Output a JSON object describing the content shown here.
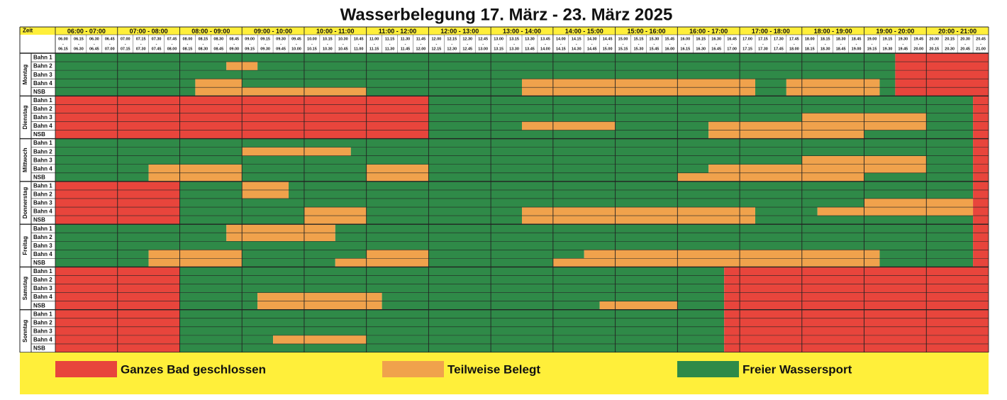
{
  "title": "Wasserbelegung 17. März - 23. März 2025",
  "time_header": "Zeit",
  "slot_separator": "-",
  "hours": [
    "06:00 - 07:00",
    "07:00 - 08:00",
    "08:00 - 09:00",
    "09:00 - 10:00",
    "10:00 - 11:00",
    "11:00 - 12:00",
    "12:00 - 13:00",
    "13:00 - 14:00",
    "14:00 - 15:00",
    "15:00 - 16:00",
    "16:00 - 17:00",
    "17:00 - 18:00",
    "18:00 - 19:00",
    "19:00 - 20:00",
    "20:00 - 21:00"
  ],
  "slots": [
    [
      "06.00",
      "06.15"
    ],
    [
      "06.15",
      "06.30"
    ],
    [
      "06.30",
      "06.45"
    ],
    [
      "06.45",
      "07.00"
    ],
    [
      "07.00",
      "07.15"
    ],
    [
      "07.15",
      "07.30"
    ],
    [
      "07.30",
      "07.45"
    ],
    [
      "07.45",
      "08.00"
    ],
    [
      "08.00",
      "08.15"
    ],
    [
      "08.15",
      "08.30"
    ],
    [
      "08.30",
      "08.45"
    ],
    [
      "08.45",
      "09.00"
    ],
    [
      "09.00",
      "09.15"
    ],
    [
      "09.15",
      "09.30"
    ],
    [
      "09.30",
      "09.45"
    ],
    [
      "09.45",
      "10.00"
    ],
    [
      "10.00",
      "10.15"
    ],
    [
      "10.15",
      "10.30"
    ],
    [
      "10.30",
      "10.45"
    ],
    [
      "10.45",
      "11.00"
    ],
    [
      "11.00",
      "11.15"
    ],
    [
      "11.15",
      "11.30"
    ],
    [
      "11.30",
      "11.45"
    ],
    [
      "11.45",
      "12.00"
    ],
    [
      "12.00",
      "12.15"
    ],
    [
      "12.15",
      "12.30"
    ],
    [
      "12.30",
      "12.45"
    ],
    [
      "12.45",
      "13.00"
    ],
    [
      "13.00",
      "13.15"
    ],
    [
      "13.15",
      "13.30"
    ],
    [
      "13.30",
      "13.45"
    ],
    [
      "13.45",
      "14.00"
    ],
    [
      "14.00",
      "14.15"
    ],
    [
      "14.15",
      "14.30"
    ],
    [
      "14.30",
      "14.45"
    ],
    [
      "14.45",
      "15.00"
    ],
    [
      "15.00",
      "15.15"
    ],
    [
      "15.15",
      "15.30"
    ],
    [
      "15.30",
      "15.45"
    ],
    [
      "15.45",
      "16.00"
    ],
    [
      "16.00",
      "16.15"
    ],
    [
      "16.15",
      "16.30"
    ],
    [
      "16.30",
      "16.45"
    ],
    [
      "16.45",
      "17.00"
    ],
    [
      "17.00",
      "17.15"
    ],
    [
      "17.15",
      "17.30"
    ],
    [
      "17.30",
      "17.45"
    ],
    [
      "17.45",
      "18.00"
    ],
    [
      "18.00",
      "18.15"
    ],
    [
      "18.15",
      "18.30"
    ],
    [
      "18.30",
      "18.45"
    ],
    [
      "18.45",
      "19.00"
    ],
    [
      "19.00",
      "19.15"
    ],
    [
      "19.15",
      "19.30"
    ],
    [
      "19.30",
      "19.45"
    ],
    [
      "19.45",
      "20.00"
    ],
    [
      "20.00",
      "20.15"
    ],
    [
      "20.15",
      "20.30"
    ],
    [
      "20.30",
      "20.45"
    ],
    [
      "20.45",
      "21.00"
    ]
  ],
  "lanes": [
    "Bahn 1",
    "Bahn 2",
    "Bahn 3",
    "Bahn 4",
    "NSB"
  ],
  "legend": [
    {
      "code": "r",
      "label": "Ganzes Bad geschlossen",
      "color": "#e8453c"
    },
    {
      "code": "o",
      "label": "Teilweise Belegt",
      "color": "#f0a24c"
    },
    {
      "code": "g",
      "label": "Freier Wassersport",
      "color": "#2f8a48"
    }
  ],
  "days": [
    {
      "name": "Montag",
      "rows": [
        [
          [
            "g",
            54
          ],
          [
            "r",
            6
          ]
        ],
        [
          [
            "g",
            11
          ],
          [
            "o",
            2
          ],
          [
            "g",
            41
          ],
          [
            "r",
            6
          ]
        ],
        [
          [
            "g",
            54
          ],
          [
            "r",
            6
          ]
        ],
        [
          [
            "g",
            9
          ],
          [
            "o",
            3
          ],
          [
            "g",
            18
          ],
          [
            "o",
            15
          ],
          [
            "g",
            2
          ],
          [
            "o",
            6
          ],
          [
            "g",
            1
          ],
          [
            "r",
            6
          ]
        ],
        [
          [
            "g",
            9
          ],
          [
            "o",
            11
          ],
          [
            "g",
            10
          ],
          [
            "o",
            15
          ],
          [
            "g",
            2
          ],
          [
            "o",
            6
          ],
          [
            "g",
            1
          ],
          [
            "r",
            6
          ]
        ]
      ]
    },
    {
      "name": "Dienstag",
      "rows": [
        [
          [
            "r",
            24
          ],
          [
            "g",
            35
          ],
          [
            "r",
            1
          ]
        ],
        [
          [
            "r",
            24
          ],
          [
            "g",
            35
          ],
          [
            "r",
            1
          ]
        ],
        [
          [
            "r",
            24
          ],
          [
            "g",
            24
          ],
          [
            "o",
            8
          ],
          [
            "g",
            3
          ],
          [
            "r",
            1
          ]
        ],
        [
          [
            "r",
            24
          ],
          [
            "g",
            6
          ],
          [
            "o",
            6
          ],
          [
            "g",
            6
          ],
          [
            "o",
            14
          ],
          [
            "g",
            3
          ],
          [
            "r",
            1
          ]
        ],
        [
          [
            "r",
            24
          ],
          [
            "g",
            18
          ],
          [
            "o",
            10
          ],
          [
            "g",
            7
          ],
          [
            "r",
            1
          ]
        ]
      ]
    },
    {
      "name": "Mittwoch",
      "rows": [
        [
          [
            "g",
            59
          ],
          [
            "r",
            1
          ]
        ],
        [
          [
            "g",
            12
          ],
          [
            "o",
            7
          ],
          [
            "g",
            40
          ],
          [
            "r",
            1
          ]
        ],
        [
          [
            "g",
            48
          ],
          [
            "o",
            8
          ],
          [
            "g",
            3
          ],
          [
            "r",
            1
          ]
        ],
        [
          [
            "g",
            6
          ],
          [
            "o",
            6
          ],
          [
            "g",
            8
          ],
          [
            "o",
            4
          ],
          [
            "g",
            18
          ],
          [
            "o",
            14
          ],
          [
            "g",
            3
          ],
          [
            "r",
            1
          ]
        ],
        [
          [
            "g",
            6
          ],
          [
            "o",
            6
          ],
          [
            "g",
            8
          ],
          [
            "o",
            4
          ],
          [
            "g",
            16
          ],
          [
            "o",
            12
          ],
          [
            "g",
            7
          ],
          [
            "r",
            1
          ]
        ]
      ]
    },
    {
      "name": "Donnerstag",
      "rows": [
        [
          [
            "r",
            8
          ],
          [
            "g",
            4
          ],
          [
            "o",
            3
          ],
          [
            "g",
            44
          ],
          [
            "r",
            1
          ]
        ],
        [
          [
            "r",
            8
          ],
          [
            "g",
            4
          ],
          [
            "o",
            3
          ],
          [
            "g",
            44
          ],
          [
            "r",
            1
          ]
        ],
        [
          [
            "r",
            8
          ],
          [
            "g",
            44
          ],
          [
            "o",
            7
          ],
          [
            "r",
            1
          ]
        ],
        [
          [
            "r",
            8
          ],
          [
            "g",
            8
          ],
          [
            "o",
            4
          ],
          [
            "g",
            10
          ],
          [
            "o",
            15
          ],
          [
            "g",
            4
          ],
          [
            "o",
            10
          ],
          [
            "r",
            1
          ]
        ],
        [
          [
            "r",
            8
          ],
          [
            "g",
            8
          ],
          [
            "o",
            4
          ],
          [
            "g",
            10
          ],
          [
            "o",
            15
          ],
          [
            "g",
            14
          ],
          [
            "r",
            1
          ]
        ]
      ]
    },
    {
      "name": "Freitag",
      "rows": [
        [
          [
            "g",
            11
          ],
          [
            "o",
            7
          ],
          [
            "g",
            41
          ],
          [
            "r",
            1
          ]
        ],
        [
          [
            "g",
            11
          ],
          [
            "o",
            7
          ],
          [
            "g",
            41
          ],
          [
            "r",
            1
          ]
        ],
        [
          [
            "g",
            59
          ],
          [
            "r",
            1
          ]
        ],
        [
          [
            "g",
            6
          ],
          [
            "o",
            6
          ],
          [
            "g",
            8
          ],
          [
            "o",
            4
          ],
          [
            "g",
            10
          ],
          [
            "o",
            19
          ],
          [
            "g",
            6
          ],
          [
            "r",
            1
          ]
        ],
        [
          [
            "g",
            6
          ],
          [
            "o",
            6
          ],
          [
            "g",
            6
          ],
          [
            "o",
            6
          ],
          [
            "g",
            8
          ],
          [
            "o",
            21
          ],
          [
            "g",
            6
          ],
          [
            "r",
            1
          ]
        ]
      ]
    },
    {
      "name": "Samstag",
      "rows": [
        [
          [
            "r",
            8
          ],
          [
            "g",
            35
          ],
          [
            "r",
            17
          ]
        ],
        [
          [
            "r",
            8
          ],
          [
            "g",
            35
          ],
          [
            "r",
            17
          ]
        ],
        [
          [
            "r",
            8
          ],
          [
            "g",
            35
          ],
          [
            "r",
            17
          ]
        ],
        [
          [
            "r",
            8
          ],
          [
            "g",
            5
          ],
          [
            "o",
            8
          ],
          [
            "g",
            22
          ],
          [
            "r",
            17
          ]
        ],
        [
          [
            "r",
            8
          ],
          [
            "g",
            5
          ],
          [
            "o",
            8
          ],
          [
            "g",
            14
          ],
          [
            "o",
            5
          ],
          [
            "g",
            3
          ],
          [
            "r",
            17
          ]
        ]
      ]
    },
    {
      "name": "Sonntag",
      "rows": [
        [
          [
            "r",
            8
          ],
          [
            "g",
            35
          ],
          [
            "r",
            17
          ]
        ],
        [
          [
            "r",
            8
          ],
          [
            "g",
            35
          ],
          [
            "r",
            17
          ]
        ],
        [
          [
            "r",
            8
          ],
          [
            "g",
            35
          ],
          [
            "r",
            17
          ]
        ],
        [
          [
            "r",
            8
          ],
          [
            "g",
            6
          ],
          [
            "o",
            6
          ],
          [
            "g",
            23
          ],
          [
            "r",
            17
          ]
        ],
        [
          [
            "r",
            8
          ],
          [
            "g",
            35
          ],
          [
            "r",
            17
          ]
        ]
      ]
    }
  ]
}
